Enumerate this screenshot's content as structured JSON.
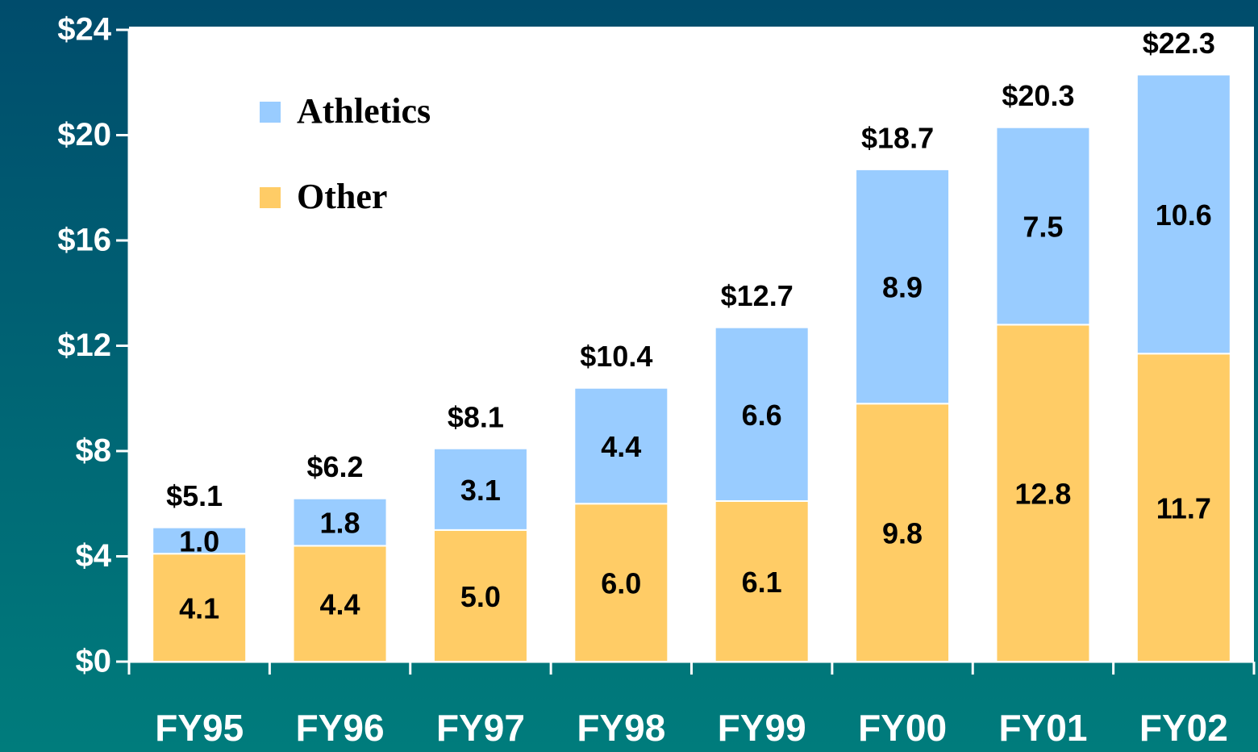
{
  "chart_data": {
    "type": "stacked_bar",
    "categories": [
      "FY95",
      "FY96",
      "FY97",
      "FY98",
      "FY99",
      "FY00",
      "FY01",
      "FY02"
    ],
    "series": [
      {
        "name": "Other",
        "color": "#ffcc66",
        "values": [
          4.1,
          4.4,
          5.0,
          6.0,
          6.1,
          9.8,
          12.8,
          11.7
        ],
        "value_labels": [
          "4.1",
          "4.4",
          "5.0",
          "6.0",
          "6.1",
          "9.8",
          "12.8",
          "11.7"
        ]
      },
      {
        "name": "Athletics",
        "color": "#99ccff",
        "values": [
          1.0,
          1.8,
          3.1,
          4.4,
          6.6,
          8.9,
          7.5,
          10.6
        ],
        "value_labels": [
          "1.0",
          "1.8",
          "3.1",
          "4.4",
          "6.6",
          "8.9",
          "7.5",
          "10.6"
        ]
      }
    ],
    "totals": {
      "values": [
        5.1,
        6.2,
        8.1,
        10.4,
        12.7,
        18.7,
        20.3,
        22.3
      ],
      "value_labels": [
        "$5.1",
        "$6.2",
        "$8.1",
        "$10.4",
        "$12.7",
        "$18.7",
        "$20.3",
        "$22.3"
      ]
    },
    "ylim": [
      0,
      24
    ],
    "yticks": [
      {
        "value": 0,
        "label": "$0"
      },
      {
        "value": 4,
        "label": "$4"
      },
      {
        "value": 8,
        "label": "$8"
      },
      {
        "value": 12,
        "label": "$12"
      },
      {
        "value": 16,
        "label": "$16"
      },
      {
        "value": 20,
        "label": "$20"
      },
      {
        "value": 24,
        "label": "$24"
      }
    ],
    "legend": "upper left"
  }
}
